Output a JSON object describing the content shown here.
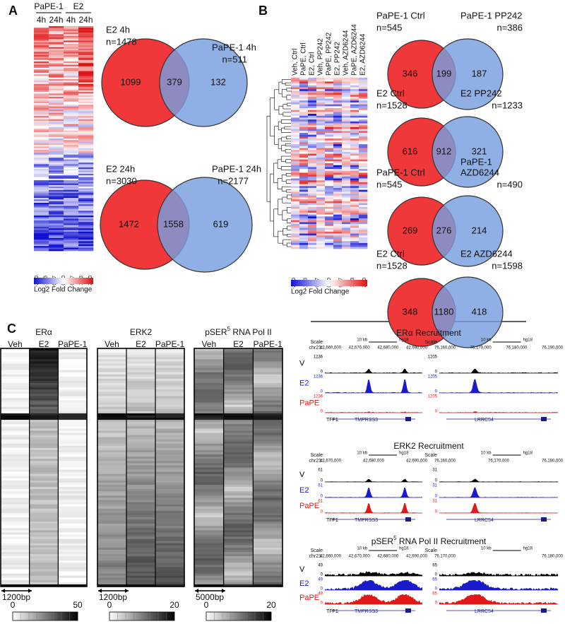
{
  "panel_a": {
    "label": "A",
    "heatmap": {
      "groups": [
        {
          "name": "PaPE-1",
          "columns": [
            "4h",
            "24h"
          ]
        },
        {
          "name": "E2",
          "columns": [
            "4h",
            "24h"
          ]
        }
      ],
      "scale_ticks": [
        "-2.00",
        "-1.33",
        "-0.67",
        "0.00",
        "0.67",
        "1.33",
        "2.00"
      ],
      "scale_title": "Log2 Fold Change"
    },
    "venns": [
      {
        "left_label": [
          "E2 4h"
        ],
        "left_n": "n=1478",
        "right_label": [
          "PaPE-1 4h"
        ],
        "right_n": "n=511",
        "left_only": 1099,
        "overlap": 379,
        "right_only": 132
      },
      {
        "left_label": [
          "E2 24h"
        ],
        "left_n": "n=3030",
        "right_label": [
          "PaPE-1 24h"
        ],
        "right_n": "n=2177",
        "left_only": 1472,
        "overlap": 1558,
        "right_only": 619
      }
    ]
  },
  "panel_b": {
    "label": "B",
    "heatmap": {
      "columns": [
        "Veh, Ctrl",
        "PaPE, Ctrl",
        "E2, Ctrl",
        "Veh, PP242",
        "PaPE, PP242",
        "E2, PP242",
        "Veh, AZD6244",
        "PaPE, AZD6244",
        "E2, AZD6244"
      ],
      "scale_ticks": [
        "-2.00",
        "-1.33",
        "-0.67",
        "0.00",
        "0.67",
        "1.33",
        "2.00"
      ],
      "scale_title": "Log2 Fold Change"
    },
    "venns": [
      {
        "left_label": [
          "PaPE-1 Ctrl"
        ],
        "left_n": "n=545",
        "right_label": [
          "PaPE-1 PP242"
        ],
        "right_n": "n=386",
        "left_only": 346,
        "overlap": 199,
        "right_only": 187
      },
      {
        "left_label": [
          "E2 Ctrl"
        ],
        "left_n": "n=1528",
        "right_label": [
          "E2 PP242"
        ],
        "right_n": "n=1233",
        "left_only": 616,
        "overlap": 912,
        "right_only": 321
      },
      {
        "left_label": [
          "PaPE-1 Ctrl"
        ],
        "left_n": "n=545",
        "right_label": [
          "PaPE-1",
          "AZD6244"
        ],
        "right_n": "n=490",
        "left_only": 269,
        "overlap": 276,
        "right_only": 214
      },
      {
        "left_label": [
          "E2 Ctrl"
        ],
        "left_n": "n=1528",
        "right_label": [
          "E2 AZD6244"
        ],
        "right_n": "n=1598",
        "left_only": 348,
        "overlap": 1180,
        "right_only": 418
      }
    ]
  },
  "panel_c": {
    "label": "C",
    "heatmaps": [
      {
        "title": "ERα",
        "columns": [
          "Veh",
          "E2",
          "PaPE-1"
        ],
        "scale_bar": "1200bp",
        "scale_min": 0,
        "scale_max": 50
      },
      {
        "title": "ERK2",
        "columns": [
          "Veh",
          "E2",
          "PaPE-1"
        ],
        "scale_bar": "1200bp",
        "scale_min": 0,
        "scale_max": 20
      },
      {
        "title": "pSER",
        "title_sup": "5",
        "title_rest": " RNA Pol II",
        "columns": [
          "Veh",
          "E2",
          "PaPE-1"
        ],
        "scale_bar": "5000bp",
        "scale_min": 0,
        "scale_max": 20
      }
    ],
    "browsers": [
      {
        "title": "ERα Recruitment",
        "tracks": [
          "V",
          "E2",
          "PaPE"
        ],
        "views": [
          {
            "scale_label": "Scale",
            "scale_bar": "10 kb",
            "assembly": "hg18",
            "chrom": "chr21:",
            "coords": [
              "42,660,000",
              "42,670,000",
              "42,680,000",
              "42,690,000"
            ],
            "track_max": 1236,
            "track_min": 0,
            "genes": [
              "TFF1",
              "TMPRSS3"
            ]
          },
          {
            "scale_label": "Scale",
            "scale_bar": "10 kb",
            "assembly": "hg18",
            "coords": [
              "76,160,000",
              "76,170,000",
              "76,180,000",
              "76,190,000"
            ],
            "track_max": 1205,
            "track_min": 0,
            "genes": [
              "LRRC54"
            ]
          }
        ]
      },
      {
        "title": "ERK2 Recruitment",
        "tracks": [
          "V",
          "E2",
          "PaPE"
        ],
        "views": [
          {
            "scale_label": "Scale",
            "scale_bar": "10 kb",
            "assembly": "hg18",
            "chrom": "chr21:",
            "coords": [
              "42,670,000",
              "42,680,000",
              "42,690,000"
            ],
            "track_max": 61,
            "track_min": 0,
            "genes": [
              "TFF1",
              "TMPRSS3"
            ]
          },
          {
            "scale_label": "Scale",
            "scale_bar": "10 kb",
            "assembly": "hg18",
            "coords": [
              "76,160,000",
              "76,170,000",
              "76,180,000"
            ],
            "track_max": 31,
            "track_min": 0,
            "genes": [
              "LRRC54"
            ]
          }
        ]
      },
      {
        "title": "pSER",
        "title_sup": "5",
        "title_rest": " RNA Pol II Recruitment",
        "tracks": [
          "V",
          "E2",
          "PaPE"
        ],
        "views": [
          {
            "scale_label": "Scale",
            "scale_bar": "10 kb",
            "assembly": "hg18",
            "chrom": "chr21:",
            "coords": [
              "42,660,000",
              "42,670,000",
              "42,680,000",
              "42,690,000"
            ],
            "track_max": 49,
            "track_min": 0,
            "genes": [
              "TFF1",
              "TMPRSS3"
            ]
          },
          {
            "scale_label": "Scale",
            "scale_bar": "10 kb",
            "assembly": "hg18",
            "coords": [
              "76,170,000",
              "76,180,000"
            ],
            "track_max": 65,
            "track_min": 0,
            "genes": [
              "LRRC54"
            ]
          }
        ]
      }
    ]
  }
}
